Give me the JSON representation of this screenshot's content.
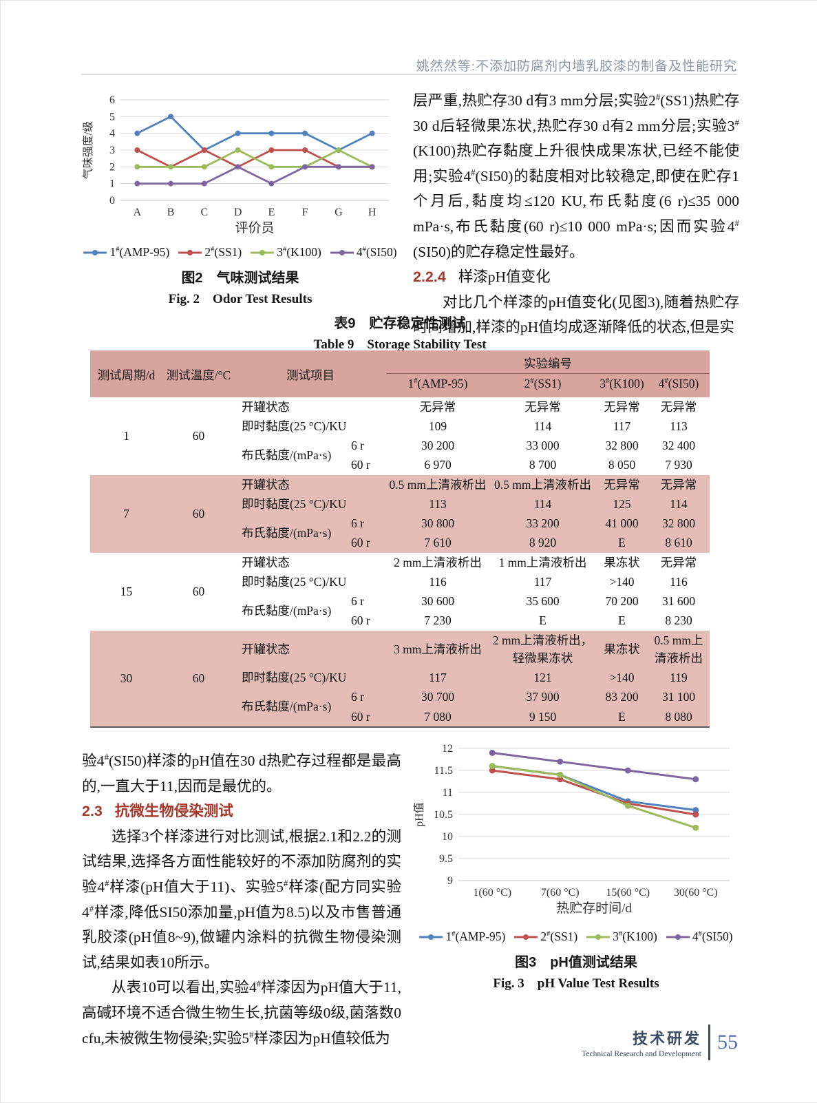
{
  "header": {
    "running_title": "姚然然等:不添加防腐剂内墙乳胶漆的制备及性能研究"
  },
  "text": {
    "p1": "层严重,热贮存30 d有3 mm分层;实验2#(SS1)热贮存30 d后轻微果冻状,热贮存30 d有2 mm分层;实验3#(K100)热贮存黏度上升很快成果冻状,已经不能使用;实验4#(SI50)的黏度相对比较稳定,即使在贮存1个月后,黏度均≤120 KU,布氏黏度(6 r)≤35 000 mPa·s,布氏黏度(60 r)≤10 000 mPa·s;因而实验4#(SI50)的贮存稳定性最好。",
    "h224_num": "2.2.4",
    "h224_title": "样漆pH值变化",
    "p2": "对比几个样漆的pH值变化(见图3),随着热贮存时间增加,样漆的pH值均成逐渐降低的状态,但是实",
    "p3": "验4#(SI50)样漆的pH值在30 d热贮存过程都是最高的,一直大于11,因而是最优的。",
    "h23_num": "2.3",
    "h23_title": "抗微生物侵染测试",
    "p4": "选择3个样漆进行对比测试,根据2.1和2.2的测试结果,选择各方面性能较好的不添加防腐剂的实验4#样漆(pH值大于11)、实验5#样漆(配方同实验4#样漆,降低SI50添加量,pH值为8.5)以及市售普通乳胶漆(pH值8~9),做罐内涂料的抗微生物侵染测试,结果如表10所示。",
    "p5": "从表10可以看出,实验4#样漆因为pH值大于11,高碱环境不适合微生物生长,抗菌等级0级,菌落数0 cfu,未被微生物侵染;实验5#样漆因为pH值较低为"
  },
  "fig2": {
    "caption_zh": "图2　气味测试结果",
    "caption_en": "Fig. 2　Odor Test Results"
  },
  "fig3": {
    "caption_zh": "图3　pH值测试结果",
    "caption_en": "Fig. 3　pH Value Test Results"
  },
  "table9": {
    "title_zh": "表9　贮存稳定性测试",
    "title_en": "Table 9　Storage Stability Test",
    "col_headers": [
      "测试周期/d",
      "测试温度/°C",
      "测试项目"
    ],
    "exp_group_header": "实验编号",
    "exp_headers": [
      "1#(AMP-95)",
      "2#(SS1)",
      "3#(K100)",
      "4#(SI50)"
    ],
    "row_labels": {
      "open": "开罐状态",
      "ku": "即时黏度(25 °C)/KU",
      "brook": "布氏黏度/(mPa·s)",
      "r6": "6 r",
      "r60": "60 r"
    },
    "groups": [
      {
        "period": "1",
        "temp": "60",
        "shaded": false,
        "open": [
          "无异常",
          "无异常",
          "无异常",
          "无异常"
        ],
        "ku": [
          "109",
          "114",
          "117",
          "113"
        ],
        "r6": [
          "30 200",
          "33 000",
          "32 800",
          "32 400"
        ],
        "r60": [
          "6 970",
          "8 700",
          "8 050",
          "7 930"
        ]
      },
      {
        "period": "7",
        "temp": "60",
        "shaded": true,
        "open": [
          "0.5 mm上清液析出",
          "0.5 mm上清液析出",
          "无异常",
          "无异常"
        ],
        "ku": [
          "113",
          "114",
          "125",
          "114"
        ],
        "r6": [
          "30 800",
          "33 200",
          "41 000",
          "32 800"
        ],
        "r60": [
          "7 610",
          "8 920",
          "E",
          "8 610"
        ]
      },
      {
        "period": "15",
        "temp": "60",
        "shaded": false,
        "open": [
          "2 mm上清液析出",
          "1 mm上清液析出",
          "果冻状",
          "无异常"
        ],
        "ku": [
          "116",
          "117",
          ">140",
          "116"
        ],
        "r6": [
          "30 600",
          "35 600",
          "70 200",
          "31 600"
        ],
        "r60": [
          "7 230",
          "E",
          "E",
          "8 230"
        ]
      },
      {
        "period": "30",
        "temp": "60",
        "shaded": true,
        "open": [
          "3 mm上清液析出",
          "2 mm上清液析出，轻微果冻状",
          "果冻状",
          "0.5 mm上清液析出"
        ],
        "ku": [
          "117",
          "121",
          ">140",
          "119"
        ],
        "r6": [
          "30 700",
          "37 900",
          "83 200",
          "31 100"
        ],
        "r60": [
          "7 080",
          "9 150",
          "E",
          "8 080"
        ]
      }
    ]
  },
  "chart_data": [
    {
      "id": "fig2",
      "type": "line",
      "title": "图2 气味测试结果",
      "title_en": "Fig. 2 Odor Test Results",
      "xlabel": "评价员",
      "ylabel": "气味强度/级",
      "categories": [
        "A",
        "B",
        "C",
        "D",
        "E",
        "F",
        "G",
        "H"
      ],
      "ylim": [
        0,
        6
      ],
      "ytick_step": 1,
      "grid": true,
      "legend_position": "bottom",
      "series": [
        {
          "name": "1#(AMP-95)",
          "color": "#4F81BD",
          "values": [
            4,
            5,
            3,
            4,
            4,
            4,
            3,
            4
          ]
        },
        {
          "name": "2#(SS1)",
          "color": "#C0504D",
          "values": [
            3,
            2,
            3,
            2,
            3,
            3,
            2,
            2
          ]
        },
        {
          "name": "3#(K100)",
          "color": "#9BBB59",
          "values": [
            2,
            2,
            2,
            3,
            2,
            2,
            3,
            2
          ]
        },
        {
          "name": "4#(SI50)",
          "color": "#8064A2",
          "values": [
            1,
            1,
            1,
            2,
            1,
            2,
            2,
            2
          ]
        }
      ]
    },
    {
      "id": "fig3",
      "type": "line",
      "title": "图3 pH值测试结果",
      "title_en": "Fig. 3 pH Value Test Results",
      "xlabel": "热贮存时间/d",
      "ylabel": "pH值",
      "categories": [
        "1(60 °C)",
        "7(60 °C)",
        "15(60 °C)",
        "30(60 °C)"
      ],
      "ylim": [
        9,
        12
      ],
      "ytick_step": 0.5,
      "grid": true,
      "legend_position": "bottom",
      "series": [
        {
          "name": "1#(AMP-95)",
          "color": "#4F81BD",
          "values": [
            11.6,
            11.4,
            10.8,
            10.6
          ]
        },
        {
          "name": "2#(SS1)",
          "color": "#C0504D",
          "values": [
            11.5,
            11.3,
            10.75,
            10.5
          ]
        },
        {
          "name": "3#(K100)",
          "color": "#9BBB59",
          "values": [
            11.6,
            11.4,
            10.7,
            10.2
          ]
        },
        {
          "name": "4#(SI50)",
          "color": "#8064A2",
          "values": [
            11.9,
            11.7,
            11.5,
            11.3
          ]
        }
      ]
    }
  ],
  "footer": {
    "dept_zh": "技术研发",
    "dept_en": "Technical Research and Development",
    "page": "55"
  }
}
